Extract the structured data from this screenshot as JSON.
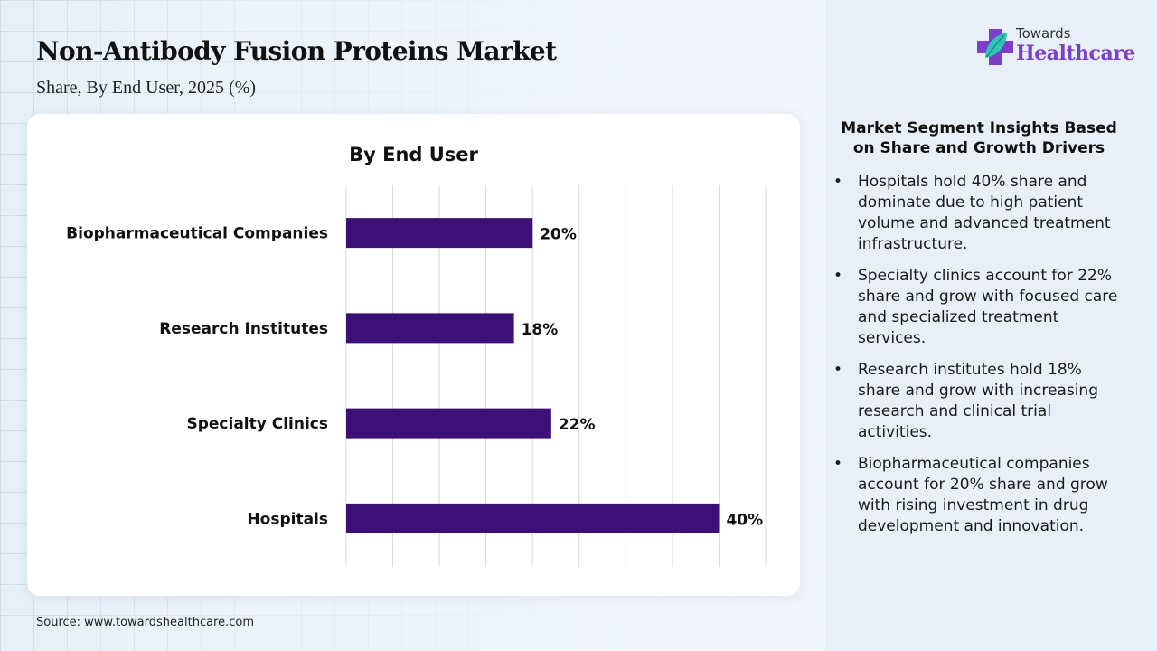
{
  "header": {
    "title": "Non-Antibody Fusion Proteins Market",
    "subtitle": "Share, By End User, 2025 (%)"
  },
  "brand": {
    "line1": "Towards",
    "line2": "Healthcare",
    "icon": "cross-leaf-icon",
    "colors": {
      "purple": "#7b3fc8",
      "leaf": "#2ec4b6"
    }
  },
  "chart_data": {
    "type": "bar",
    "orientation": "horizontal",
    "title": "By End User",
    "categories": [
      "Biopharmaceutical Companies",
      "Research Institutes",
      "Specialty Clinics",
      "Hospitals"
    ],
    "values": [
      20,
      18,
      22,
      40
    ],
    "value_labels": [
      "20%",
      "18%",
      "22%",
      "40%"
    ],
    "xlabel": "",
    "ylabel": "",
    "xlim": [
      0,
      45
    ],
    "grid": true,
    "grid_step": 5,
    "bar_color": "#3d1078",
    "legend": "none"
  },
  "insights": {
    "title": "Market Segment Insights Based on Share and Growth Drivers",
    "items": [
      "Hospitals hold 40% share and dominate due to high patient volume and advanced treatment infrastructure.",
      "Specialty clinics account for 22% share and grow with focused care and specialized treatment services.",
      "Research institutes hold 18% share and grow with increasing research and clinical trial activities.",
      "Biopharmaceutical companies account for 20% share and grow with rising investment in drug development and innovation."
    ],
    "bullet": "•"
  },
  "footer": {
    "source": "Source: www.towardshealthcare.com"
  }
}
